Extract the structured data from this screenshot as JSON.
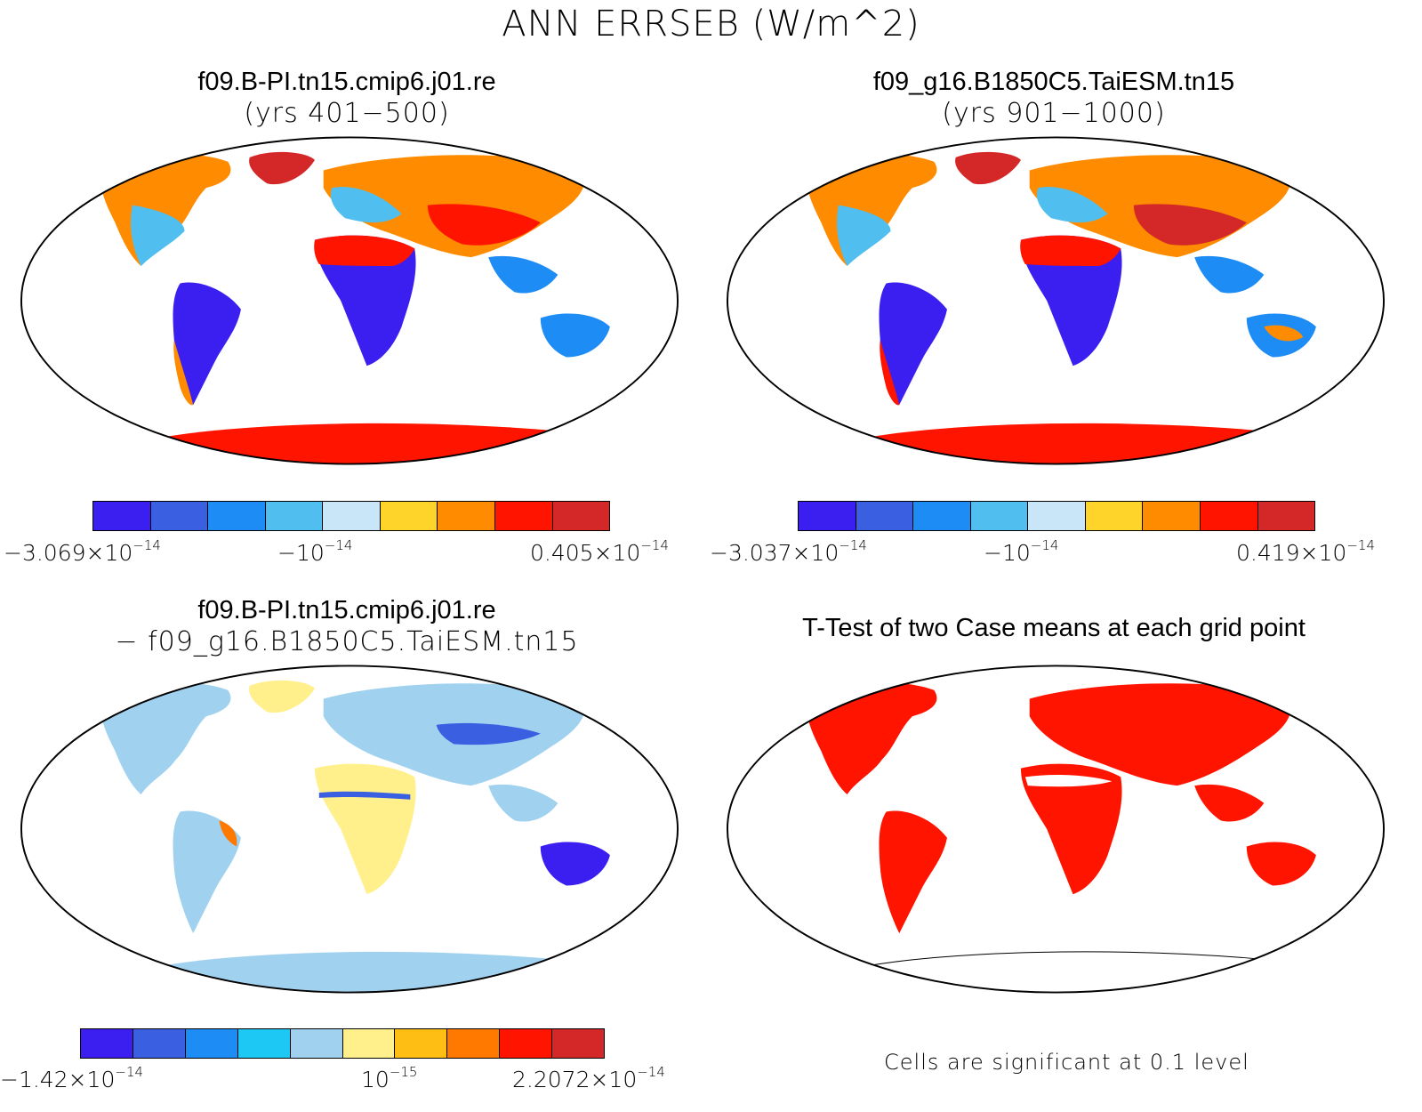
{
  "figure": {
    "title": "ANN ERRSEB (W/m^2)"
  },
  "panels": [
    {
      "id": "case1",
      "title_line1": "f09.B-PI.tn15.cmip6.j01.re",
      "title_line2": "(yrs 401−500)",
      "colorbar": {
        "colors": [
          "#3b1ff0",
          "#3a5fe0",
          "#1e8cf5",
          "#50bff0",
          "#c8e6f8",
          "#ffd42a",
          "#ff8c00",
          "#ff1400",
          "#d42828"
        ],
        "label_min": "−3.069×10",
        "label_min_exp": "−14",
        "label_mid": "−10",
        "label_mid_exp": "−14",
        "label_max": "0.405×10",
        "label_max_exp": "−14"
      }
    },
    {
      "id": "case2",
      "title_line1": "f09_g16.B1850C5.TaiESM.tn15",
      "title_line2": "(yrs 901−1000)",
      "colorbar": {
        "colors": [
          "#3b1ff0",
          "#3a5fe0",
          "#1e8cf5",
          "#50bff0",
          "#c8e6f8",
          "#ffd42a",
          "#ff8c00",
          "#ff1400",
          "#d42828"
        ],
        "label_min": "−3.037×10",
        "label_min_exp": "−14",
        "label_mid": "−10",
        "label_mid_exp": "−14",
        "label_max": "0.419×10",
        "label_max_exp": "−14"
      }
    },
    {
      "id": "difference",
      "title_line1": "f09.B-PI.tn15.cmip6.j01.re",
      "title_line2": "− f09_g16.B1850C5.TaiESM.tn15",
      "colorbar": {
        "colors": [
          "#3b1ff0",
          "#3a5fe0",
          "#1e8cf5",
          "#1ec8f5",
          "#a0d2f0",
          "#fff08c",
          "#ffbe14",
          "#ff7800",
          "#ff1400",
          "#d42828"
        ],
        "label_min": "−1.42×10",
        "label_min_exp": "−14",
        "label_mid": "10",
        "label_mid_exp": "−15",
        "label_max": "2.2072×10",
        "label_max_exp": "−14"
      }
    },
    {
      "id": "ttest",
      "title_line1": "T-Test of two Case means at each grid point",
      "footnote": "Cells are significant at 0.1 level"
    }
  ]
}
